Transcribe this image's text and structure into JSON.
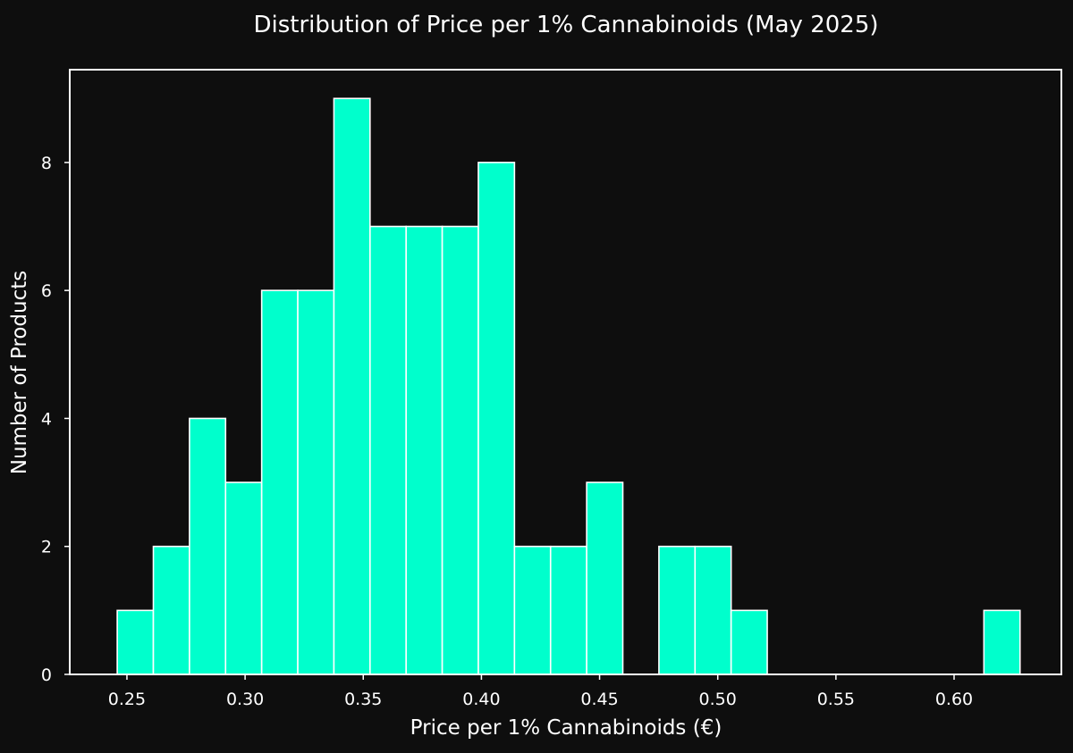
{
  "chart_data": {
    "type": "bar",
    "title": "Distribution of Price per 1% Cannabinoids (May 2025)",
    "xlabel": "Price per 1% Cannabinoids (€)",
    "ylabel": "Number of Products",
    "xlim": [
      0.2258,
      0.6454
    ],
    "ylim": [
      0,
      9.45
    ],
    "x_ticks": [
      0.25,
      0.3,
      0.35,
      0.4,
      0.45,
      0.5,
      0.55,
      0.6
    ],
    "x_tick_labels": [
      "0.25",
      "0.30",
      "0.35",
      "0.40",
      "0.45",
      "0.50",
      "0.55",
      "0.60"
    ],
    "y_ticks": [
      0,
      2,
      4,
      6,
      8
    ],
    "y_tick_labels": [
      "0",
      "2",
      "4",
      "6",
      "8"
    ],
    "grid": false,
    "bin_start": 0.2459,
    "bin_width": 0.01528,
    "values": [
      1,
      2,
      4,
      3,
      6,
      6,
      9,
      7,
      7,
      7,
      8,
      2,
      2,
      3,
      0,
      2,
      2,
      1,
      0,
      0,
      0,
      0,
      0,
      0,
      1
    ],
    "colors": {
      "background": "#0e0e0e",
      "bar": "#00ffcc",
      "edge": "#ffffff"
    }
  }
}
